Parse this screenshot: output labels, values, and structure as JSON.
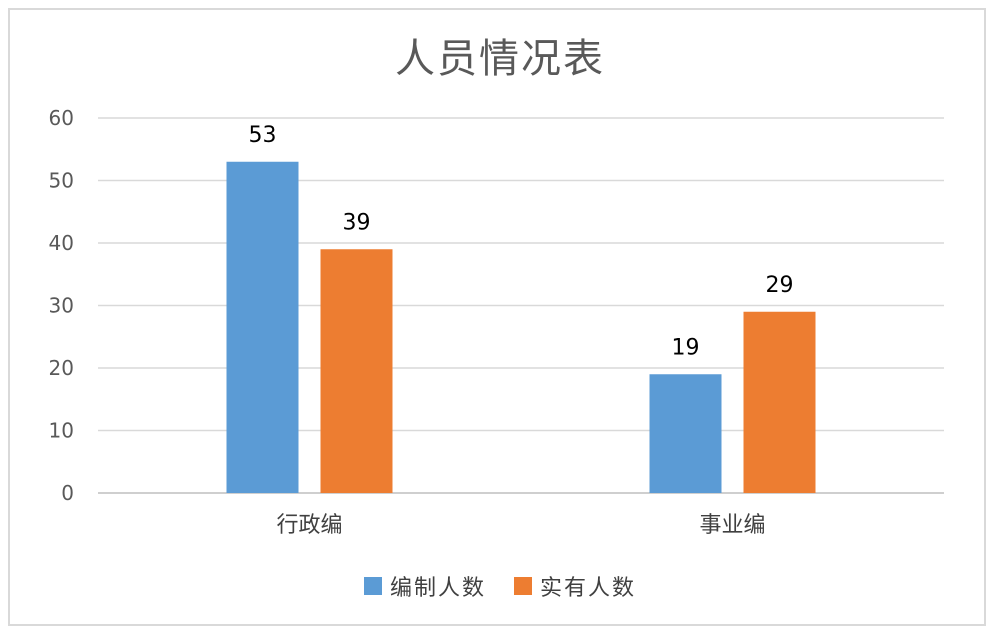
{
  "chart_data": {
    "type": "bar",
    "title": "人员情况表",
    "categories": [
      "行政编",
      "事业编"
    ],
    "series": [
      {
        "name": "编制人数",
        "values": [
          53,
          19
        ],
        "color": "#5b9bd5"
      },
      {
        "name": "实有人数",
        "values": [
          39,
          29
        ],
        "color": "#ed7d31"
      }
    ],
    "ylim": [
      0,
      60
    ],
    "yticks": [
      0,
      10,
      20,
      30,
      40,
      50,
      60
    ],
    "xlabel": "",
    "ylabel": "",
    "grid": true,
    "legend_position": "bottom",
    "data_labels": true
  }
}
